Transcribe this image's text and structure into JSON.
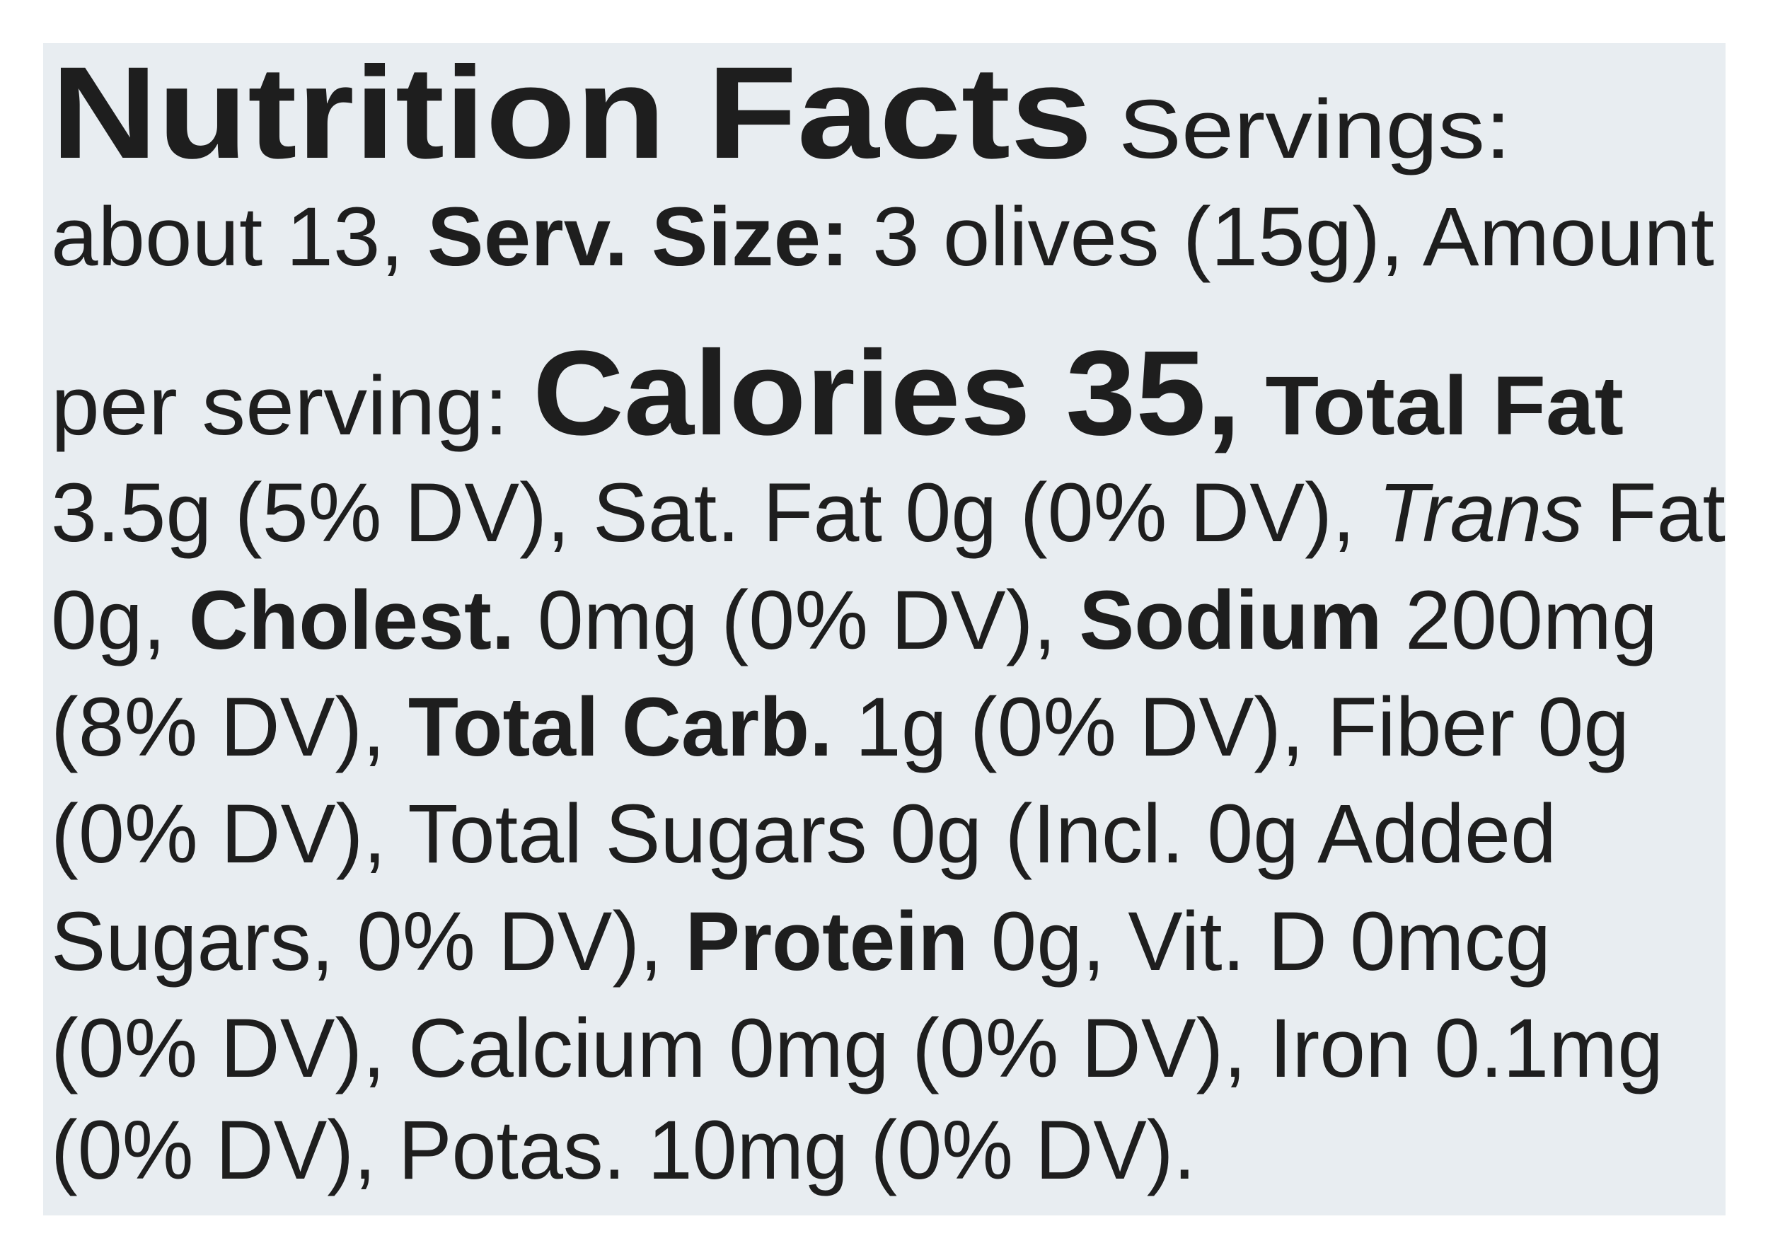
{
  "label": {
    "lines": [
      {
        "segments": [
          {
            "text": "Nutrition Facts",
            "style": "title"
          },
          {
            "text": " Servings:",
            "style": "regular"
          }
        ]
      },
      {
        "segments": [
          {
            "text": "about 13, ",
            "style": "regular"
          },
          {
            "text": "Serv. Size:",
            "style": "bold"
          },
          {
            "text": " 3 olives (15g), Amount",
            "style": "regular"
          }
        ]
      },
      {
        "segments": [
          {
            "text": "per serving: ",
            "style": "regular"
          },
          {
            "text": "Calories 35,",
            "style": "calories"
          },
          {
            "text": " Total Fat",
            "style": "bold"
          }
        ]
      },
      {
        "segments": [
          {
            "text": "3.5g (5% DV), Sat. Fat 0g (0% DV), ",
            "style": "regular"
          },
          {
            "text": "Trans",
            "style": "italic"
          },
          {
            "text": " Fat",
            "style": "regular"
          }
        ]
      },
      {
        "segments": [
          {
            "text": "0g, ",
            "style": "regular"
          },
          {
            "text": "Cholest.",
            "style": "bold"
          },
          {
            "text": " 0mg (0% DV), ",
            "style": "regular"
          },
          {
            "text": "Sodium",
            "style": "bold"
          },
          {
            "text": " 200mg",
            "style": "regular"
          }
        ]
      },
      {
        "segments": [
          {
            "text": "(8% DV), ",
            "style": "regular"
          },
          {
            "text": "Total Carb.",
            "style": "bold"
          },
          {
            "text": " 1g (0% DV), Fiber 0g",
            "style": "regular"
          }
        ]
      },
      {
        "segments": [
          {
            "text": "(0% DV), Total Sugars 0g (Incl. 0g Added",
            "style": "regular"
          }
        ]
      },
      {
        "segments": [
          {
            "text": "Sugars, 0% DV), ",
            "style": "regular"
          },
          {
            "text": "Protein",
            "style": "bold"
          },
          {
            "text": " 0g, Vit. D 0mcg",
            "style": "regular"
          }
        ]
      },
      {
        "segments": [
          {
            "text": "(0% DV), Calcium 0mg (0% DV), Iron 0.1mg",
            "style": "regular"
          }
        ]
      },
      {
        "segments": [
          {
            "text": "(0% DV), Potas. 10mg (0% DV).",
            "style": "regular"
          }
        ]
      }
    ]
  }
}
